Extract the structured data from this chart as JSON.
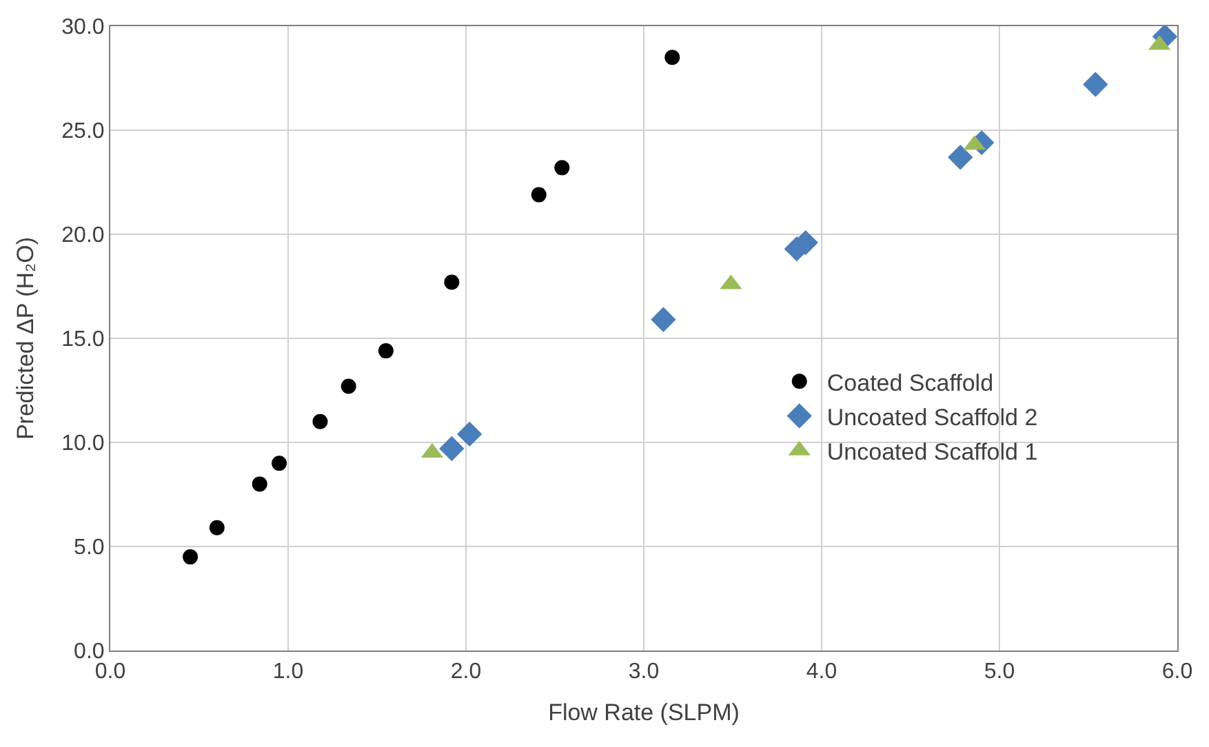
{
  "chart_data": {
    "type": "scatter",
    "xlabel": "Flow Rate (SLPM)",
    "ylabel": "Predicted ΔP (H₂O)",
    "xlim": [
      0,
      6
    ],
    "ylim": [
      0,
      30
    ],
    "xticks": [
      {
        "value": 0,
        "label": "0.0"
      },
      {
        "value": 1,
        "label": "1.0"
      },
      {
        "value": 2,
        "label": "2.0"
      },
      {
        "value": 3,
        "label": "3.0"
      },
      {
        "value": 4,
        "label": "4.0"
      },
      {
        "value": 5,
        "label": "5.0"
      },
      {
        "value": 6,
        "label": "6.0"
      }
    ],
    "yticks": [
      {
        "value": 0,
        "label": "0.0"
      },
      {
        "value": 5,
        "label": "5.0"
      },
      {
        "value": 10,
        "label": "10.0"
      },
      {
        "value": 15,
        "label": "15.0"
      },
      {
        "value": 20,
        "label": "20.0"
      },
      {
        "value": 25,
        "label": "25.0"
      },
      {
        "value": 30,
        "label": "30.0"
      }
    ],
    "grid": true,
    "legend": "right",
    "series": [
      {
        "name": "Coated Scaffold",
        "color": "#000000",
        "marker": "circle",
        "x": [
          0.45,
          0.6,
          0.84,
          0.95,
          1.18,
          1.34,
          1.55,
          1.92,
          2.41,
          2.54,
          3.16
        ],
        "values": [
          4.5,
          5.9,
          8.0,
          9.0,
          11.0,
          12.7,
          14.4,
          17.7,
          21.9,
          23.2,
          28.5
        ]
      },
      {
        "name": "Uncoated Scaffold 2",
        "color": "#4a7ebb",
        "marker": "diamond",
        "x": [
          1.92,
          2.02,
          3.11,
          3.86,
          3.91,
          4.78,
          4.9,
          5.54,
          5.93
        ],
        "values": [
          9.7,
          10.4,
          15.9,
          19.3,
          19.6,
          23.7,
          24.4,
          27.2,
          29.5
        ]
      },
      {
        "name": "Uncoated Scaffold 1",
        "color": "#9bbb59",
        "marker": "triangle",
        "x": [
          1.81,
          3.49,
          4.86,
          5.9
        ],
        "values": [
          9.5,
          17.6,
          24.3,
          29.1
        ]
      }
    ]
  }
}
